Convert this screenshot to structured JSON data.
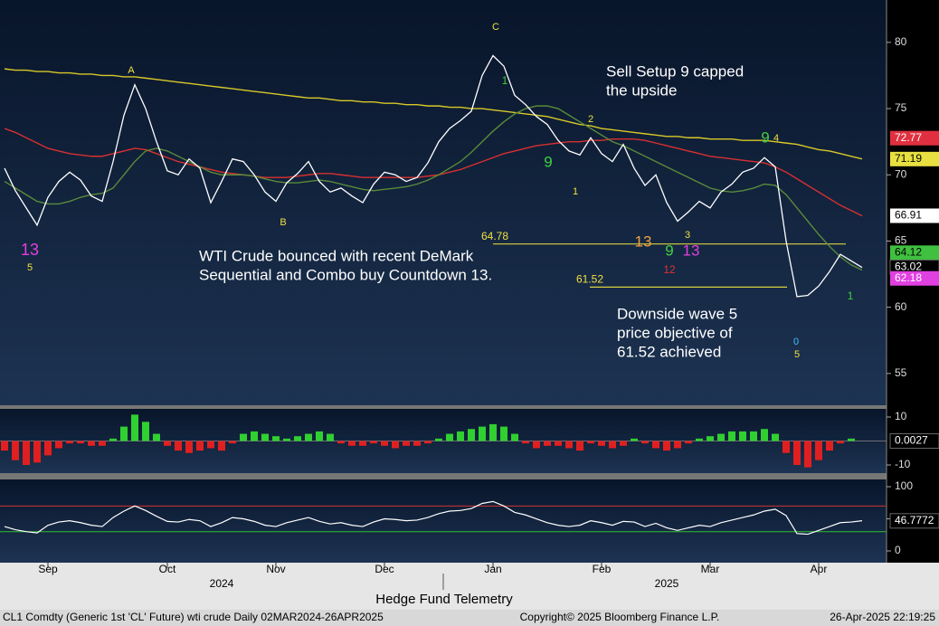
{
  "chart_data": [
    {
      "type": "line",
      "panel": "price",
      "categories": [
        null,
        null,
        null,
        null,
        "Sep",
        null,
        null,
        null,
        null,
        null,
        null,
        null,
        null,
        null,
        null,
        "Oct",
        null,
        null,
        null,
        null,
        null,
        null,
        null,
        null,
        null,
        "Nov",
        null,
        null,
        null,
        null,
        null,
        null,
        null,
        null,
        null,
        "Dec",
        null,
        null,
        null,
        null,
        null,
        null,
        null,
        null,
        null,
        "Jan",
        null,
        null,
        null,
        null,
        null,
        null,
        null,
        null,
        null,
        "Feb",
        null,
        null,
        null,
        null,
        null,
        null,
        null,
        null,
        null,
        "Mar",
        null,
        null,
        null,
        null,
        null,
        null,
        null,
        null,
        null,
        "Apr",
        null,
        null,
        null,
        null
      ],
      "categories2": [
        null,
        null,
        null,
        null,
        null,
        null,
        null,
        null,
        null,
        null,
        null,
        null,
        null,
        null,
        null,
        null,
        null,
        null,
        null,
        null,
        "2024",
        null,
        null,
        null,
        null,
        null,
        null,
        null,
        null,
        null,
        null,
        null,
        null,
        null,
        null,
        null,
        null,
        null,
        null,
        null,
        null,
        null,
        null,
        null,
        null,
        null,
        null,
        null,
        null,
        null,
        null,
        null,
        null,
        null,
        null,
        null,
        null,
        null,
        null,
        null,
        null,
        "2025",
        null,
        null,
        null,
        null,
        null,
        null,
        null,
        null,
        null,
        null,
        null,
        null,
        null,
        null,
        null,
        null,
        null,
        null
      ],
      "series": [
        {
          "color": "#ffffff",
          "values": [
            70.5,
            68.8,
            67.5,
            66.2,
            68.3,
            69.5,
            70.2,
            69.6,
            68.4,
            68.0,
            71.0,
            74.5,
            76.8,
            75.0,
            72.5,
            70.3,
            70.0,
            71.2,
            70.5,
            67.9,
            69.5,
            71.2,
            71.0,
            70.0,
            68.7,
            68.0,
            69.4,
            70.1,
            71.0,
            69.5,
            68.7,
            69.0,
            68.4,
            67.9,
            69.3,
            70.2,
            70.0,
            69.5,
            69.8,
            70.9,
            72.5,
            73.5,
            74.1,
            74.8,
            77.5,
            79.0,
            78.2,
            76.0,
            75.3,
            74.4,
            73.8,
            72.6,
            71.8,
            71.5,
            72.8,
            71.6,
            71.0,
            72.3,
            70.5,
            69.2,
            70.0,
            67.9,
            66.5,
            67.2,
            68.0,
            67.5,
            68.7,
            69.3,
            70.2,
            70.5,
            71.3,
            70.6,
            65.0,
            60.8,
            60.9,
            61.6,
            62.7,
            64.0,
            63.5,
            63.0
          ]
        },
        {
          "color": "#d8c828",
          "values": [
            78.0,
            77.9,
            77.9,
            77.8,
            77.8,
            77.7,
            77.7,
            77.6,
            77.6,
            77.5,
            77.5,
            77.4,
            77.4,
            77.3,
            77.2,
            77.1,
            77.0,
            76.9,
            76.8,
            76.7,
            76.6,
            76.5,
            76.4,
            76.3,
            76.2,
            76.1,
            76.0,
            75.9,
            75.8,
            75.8,
            75.7,
            75.6,
            75.6,
            75.5,
            75.5,
            75.4,
            75.4,
            75.3,
            75.3,
            75.2,
            75.2,
            75.1,
            75.1,
            75.0,
            75.0,
            74.9,
            74.8,
            74.7,
            74.6,
            74.5,
            74.4,
            74.2,
            74.0,
            73.8,
            73.7,
            73.5,
            73.4,
            73.3,
            73.2,
            73.1,
            73.0,
            72.9,
            72.9,
            72.8,
            72.8,
            72.7,
            72.7,
            72.7,
            72.6,
            72.6,
            72.6,
            72.5,
            72.4,
            72.3,
            72.1,
            71.9,
            71.8,
            71.6,
            71.4,
            71.2
          ]
        },
        {
          "color": "#d83030",
          "values": [
            73.5,
            73.2,
            72.8,
            72.4,
            72.0,
            71.8,
            71.6,
            71.5,
            71.4,
            71.4,
            71.6,
            71.8,
            72.0,
            71.9,
            71.6,
            71.3,
            71.0,
            70.8,
            70.6,
            70.4,
            70.2,
            70.1,
            70.0,
            69.9,
            69.8,
            69.8,
            69.8,
            69.9,
            70.0,
            70.1,
            70.1,
            70.0,
            69.9,
            69.8,
            69.8,
            69.8,
            69.8,
            69.8,
            69.8,
            69.9,
            70.0,
            70.2,
            70.4,
            70.7,
            71.0,
            71.3,
            71.6,
            71.8,
            72.0,
            72.2,
            72.3,
            72.4,
            72.5,
            72.5,
            72.6,
            72.6,
            72.7,
            72.7,
            72.7,
            72.6,
            72.4,
            72.2,
            72.0,
            71.8,
            71.6,
            71.4,
            71.3,
            71.2,
            71.1,
            71.0,
            70.9,
            70.6,
            70.2,
            69.7,
            69.2,
            68.7,
            68.2,
            67.7,
            67.3,
            66.9
          ]
        },
        {
          "color": "#5a8a3a",
          "values": [
            69.5,
            69.0,
            68.5,
            68.0,
            67.8,
            67.8,
            68.0,
            68.3,
            68.5,
            68.6,
            69.0,
            70.0,
            71.0,
            71.8,
            72.0,
            71.8,
            71.4,
            71.0,
            70.6,
            70.2,
            70.0,
            70.0,
            70.0,
            69.9,
            69.7,
            69.5,
            69.4,
            69.4,
            69.5,
            69.6,
            69.5,
            69.3,
            69.1,
            68.9,
            68.8,
            68.9,
            69.0,
            69.1,
            69.3,
            69.6,
            70.0,
            70.5,
            71.0,
            71.7,
            72.5,
            73.3,
            74.0,
            74.6,
            75.0,
            75.2,
            75.2,
            75.0,
            74.5,
            74.0,
            73.5,
            73.0,
            72.5,
            72.2,
            71.8,
            71.4,
            71.0,
            70.6,
            70.2,
            69.8,
            69.4,
            69.0,
            68.8,
            68.7,
            68.8,
            69.0,
            69.3,
            69.2,
            68.5,
            67.5,
            66.5,
            65.5,
            64.6,
            63.8,
            63.2,
            62.8
          ]
        }
      ],
      "ylim": [
        52.6,
        83.2
      ],
      "yticks": [
        55,
        60,
        65,
        70,
        75,
        80
      ],
      "price_tags": [
        {
          "value": 72.77,
          "color": "#e03040"
        },
        {
          "value": 71.19,
          "color": "#e8e040"
        },
        {
          "value": 66.91,
          "color": "#ffffff"
        },
        {
          "value": 64.12,
          "color": "#40c040"
        },
        {
          "value": 63.02,
          "color": "#000000"
        },
        {
          "value": 62.18,
          "color": "#e040e0"
        }
      ],
      "levels": [
        64.78,
        61.52
      ],
      "annotations": [
        {
          "lines": [
            "Sell Setup 9 capped",
            "the upside"
          ]
        },
        {
          "lines": [
            "WTI Crude bounced with recent DeMark",
            "Sequential and Combo buy Countdown 13."
          ]
        },
        {
          "lines": [
            "Downside wave 5",
            "price objective of",
            "61.52 achieved"
          ]
        }
      ],
      "demark_labels": [
        {
          "text": "13",
          "color": "#e040e0"
        },
        {
          "text": "5",
          "color": "#f0e040"
        },
        {
          "text": "A",
          "color": "#f0e040"
        },
        {
          "text": "B",
          "color": "#f0e040"
        },
        {
          "text": "C",
          "color": "#f0e040"
        },
        {
          "text": "1",
          "color": "#40d040"
        },
        {
          "text": "9",
          "color": "#40d040"
        },
        {
          "text": "13",
          "color": "#f0a040"
        },
        {
          "text": "9",
          "color": "#40d040"
        },
        {
          "text": "13",
          "color": "#e040e0"
        },
        {
          "text": "12",
          "color": "#e03030"
        },
        {
          "text": "9",
          "color": "#40d040"
        },
        {
          "text": "4",
          "color": "#f0e040"
        },
        {
          "text": "0",
          "color": "#40c0ff"
        },
        {
          "text": "5",
          "color": "#f0e040"
        },
        {
          "text": "1",
          "color": "#40d040"
        },
        {
          "text": "2",
          "color": "#f0e040"
        },
        {
          "text": "1",
          "color": "#f0e040"
        },
        {
          "text": "3",
          "color": "#f0e040"
        }
      ],
      "footer": {
        "left": "CL1 Comdty (Generic 1st 'CL' Future) wti crude  Daily 02MAR2024-26APR2025",
        "center": "Hedge Fund Telemetry",
        "copyright": "Copyright© 2025 Bloomberg Finance L.P.",
        "timestamp": "26-Apr-2025 22:19:25"
      }
    },
    {
      "type": "bar",
      "panel": "histogram",
      "values": [
        -4,
        -8,
        -10,
        -9,
        -6,
        -3,
        -1,
        -1,
        -2,
        -2,
        1,
        6,
        11,
        8,
        3,
        -2,
        -4,
        -5,
        -4,
        -3,
        -4,
        -1,
        3,
        4,
        3,
        2,
        1,
        2,
        3,
        4,
        3,
        -1,
        -2,
        -2,
        -1,
        -2,
        -3,
        -2,
        -2,
        -1,
        1,
        3,
        4,
        5,
        6,
        7,
        6,
        3,
        -1,
        -3,
        -2,
        -2,
        -3,
        -4,
        -1,
        -2,
        -3,
        -2,
        1,
        -1,
        -3,
        -4,
        -3,
        -1,
        1,
        2,
        3,
        4,
        4,
        4,
        5,
        3,
        -5,
        -10,
        -11,
        -8,
        -4,
        -1,
        1,
        0
      ],
      "pos_color": "#30d030",
      "neg_color": "#e02020",
      "ylim": [
        -13.4,
        13.4
      ],
      "yticks": [
        -10,
        10
      ],
      "tag": 0.0027
    },
    {
      "type": "line",
      "panel": "oscillator",
      "values": [
        38,
        33,
        30,
        28,
        40,
        45,
        47,
        44,
        40,
        38,
        52,
        62,
        70,
        63,
        54,
        46,
        45,
        49,
        47,
        38,
        44,
        52,
        50,
        46,
        40,
        38,
        44,
        48,
        52,
        46,
        42,
        44,
        40,
        38,
        45,
        50,
        49,
        47,
        48,
        52,
        58,
        62,
        63,
        66,
        74,
        77,
        70,
        60,
        56,
        50,
        44,
        40,
        38,
        40,
        47,
        44,
        40,
        46,
        45,
        38,
        43,
        36,
        32,
        36,
        40,
        38,
        44,
        48,
        52,
        56,
        62,
        65,
        55,
        27,
        26,
        32,
        38,
        44,
        45,
        47
      ],
      "color": "#ffffff",
      "ylim": [
        -18.3,
        111.3
      ],
      "yticks": [
        0,
        50,
        100
      ],
      "upper": 70,
      "lower": 30,
      "tag": 46.7772
    }
  ]
}
